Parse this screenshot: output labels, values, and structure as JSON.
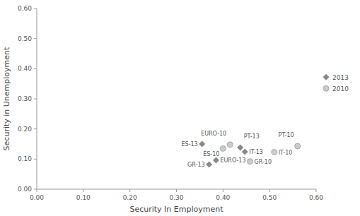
{
  "chart_data": {
    "type": "scatter",
    "x_label": "Security In Employment",
    "y_label": "Security in Unemployment",
    "xlim": [
      0.0,
      0.6
    ],
    "ylim": [
      0.0,
      0.6
    ],
    "xticks": [
      {
        "value": 0.0,
        "label": "0.00"
      },
      {
        "value": 0.1,
        "label": "0.10"
      },
      {
        "value": 0.2,
        "label": "0.20"
      },
      {
        "value": 0.3,
        "label": "0.30"
      },
      {
        "value": 0.4,
        "label": "0.40"
      },
      {
        "value": 0.5,
        "label": "0.50"
      },
      {
        "value": 0.6,
        "label": "0.60"
      }
    ],
    "yticks": [
      {
        "value": 0.0,
        "label": "0.00"
      },
      {
        "value": 0.1,
        "label": "0.10"
      },
      {
        "value": 0.2,
        "label": "0.20"
      },
      {
        "value": 0.3,
        "label": "0.30"
      },
      {
        "value": 0.4,
        "label": "0.40"
      },
      {
        "value": 0.5,
        "label": "0.50"
      },
      {
        "value": 0.6,
        "label": "0.60"
      }
    ],
    "grid": false,
    "legend": "right",
    "series": [
      {
        "name": "2013",
        "color": "#888888",
        "marker": "diamond",
        "labels": [
          "ES-13",
          "EURO-13",
          "GR-13",
          "PT-13",
          "IT-13"
        ],
        "x": [
          0.355,
          0.385,
          0.37,
          0.437,
          0.447
        ],
        "values": [
          0.15,
          0.096,
          0.082,
          0.138,
          0.124
        ]
      },
      {
        "name": "2010",
        "color": "#cccccc",
        "marker": "circle",
        "labels": [
          "EURO-10",
          "ES-10",
          "GR-10",
          "IT-10",
          "PT-10"
        ],
        "x": [
          0.415,
          0.4,
          0.458,
          0.51,
          0.56
        ],
        "values": [
          0.148,
          0.135,
          0.092,
          0.123,
          0.143
        ]
      }
    ]
  }
}
